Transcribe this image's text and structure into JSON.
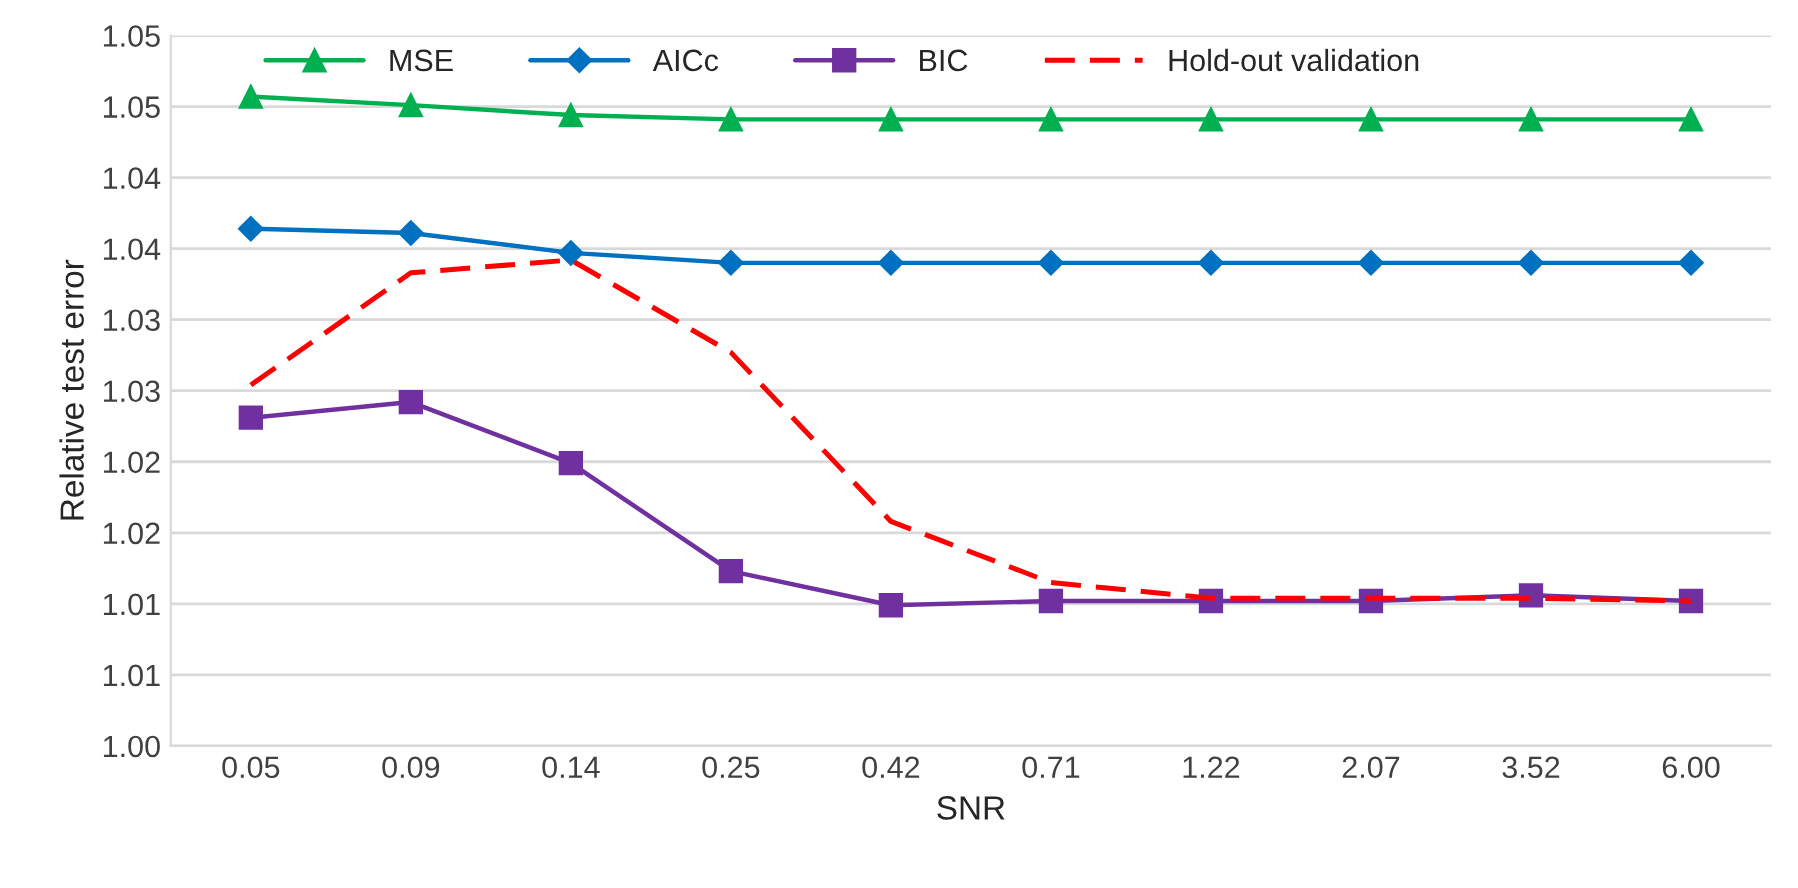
{
  "chart_data": {
    "type": "line",
    "xlabel": "SNR",
    "ylabel": "Relative test error",
    "categories": [
      "0.05",
      "0.09",
      "0.14",
      "0.25",
      "0.42",
      "0.71",
      "1.22",
      "2.07",
      "3.52",
      "6.00"
    ],
    "ylim": [
      1.0,
      1.05
    ],
    "yticks": [
      {
        "value": 1.0,
        "label": "1.00"
      },
      {
        "value": 1.005,
        "label": "1.01"
      },
      {
        "value": 1.01,
        "label": "1.01"
      },
      {
        "value": 1.015,
        "label": "1.02"
      },
      {
        "value": 1.02,
        "label": "1.02"
      },
      {
        "value": 1.025,
        "label": "1.03"
      },
      {
        "value": 1.03,
        "label": "1.03"
      },
      {
        "value": 1.035,
        "label": "1.04"
      },
      {
        "value": 1.04,
        "label": "1.04"
      },
      {
        "value": 1.045,
        "label": "1.05"
      },
      {
        "value": 1.05,
        "label": "1.05"
      }
    ],
    "grid": "y",
    "legend": "top",
    "series": [
      {
        "name": "MSE",
        "color": "#00b050",
        "marker": "triangle",
        "line_style": "solid",
        "values": [
          1.0457,
          1.0451,
          1.0444,
          1.0441,
          1.0441,
          1.0441,
          1.0441,
          1.0441,
          1.0441,
          1.0441
        ]
      },
      {
        "name": "AICc",
        "color": "#0070c0",
        "marker": "diamond",
        "line_style": "solid",
        "values": [
          1.0364,
          1.0361,
          1.0347,
          1.034,
          1.034,
          1.034,
          1.034,
          1.034,
          1.034,
          1.034
        ]
      },
      {
        "name": "BIC",
        "color": "#7030a0",
        "marker": "square",
        "line_style": "solid",
        "values": [
          1.0231,
          1.0242,
          1.0199,
          1.0123,
          1.0099,
          1.0102,
          1.0102,
          1.0102,
          1.0106,
          1.0102
        ]
      },
      {
        "name": "Hold-out validation",
        "color": "#ff0000",
        "marker": "none",
        "line_style": "dashed",
        "values": [
          1.0254,
          1.0333,
          1.0342,
          1.0277,
          1.0158,
          1.0115,
          1.0104,
          1.0104,
          1.0104,
          1.0102
        ]
      }
    ]
  }
}
